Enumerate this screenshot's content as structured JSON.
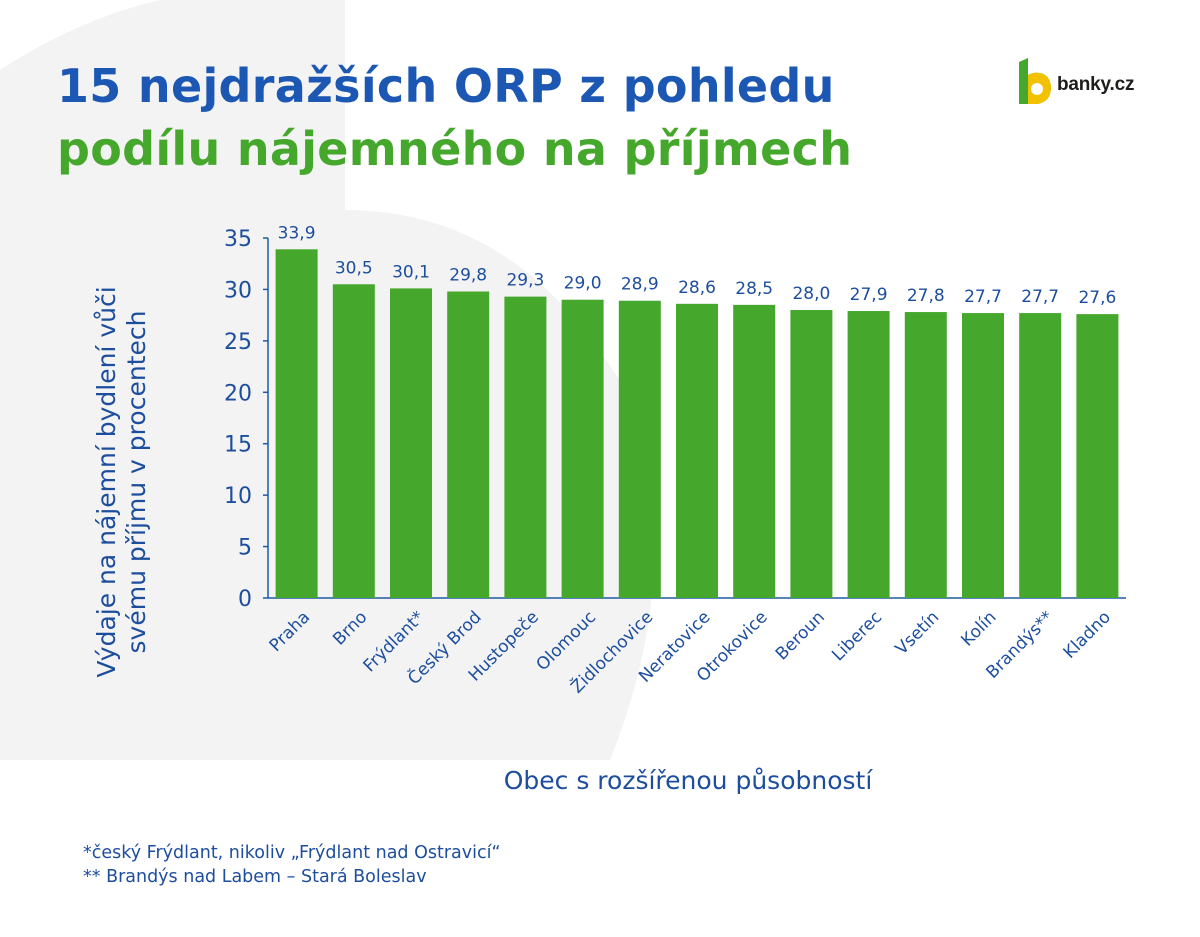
{
  "colors": {
    "title_blue": "#1b57b3",
    "title_green": "#45a72c",
    "bar_green": "#45a72c",
    "text_blue": "#1d4e9e",
    "background_shape": "#f3f3f3"
  },
  "header": {
    "title_line1": "15 nejdražších ORP z pohledu",
    "title_line2": "podílu nájemného na příjmech",
    "logo": {
      "icon": "banky-b-logo-icon",
      "text": "banky.cz"
    }
  },
  "chart_data": {
    "type": "bar",
    "ylabel": "Výdaje na nájemní bydlení vůči svému příjmu v procentech",
    "xlabel": "Obec s rozšířenou působností",
    "ylim": [
      0,
      35
    ],
    "yticks": [
      "0",
      "5",
      "10",
      "15",
      "20",
      "25",
      "30",
      "35"
    ],
    "grid": false,
    "categories": [
      "Praha",
      "Brno",
      "Frýdlant*",
      "Český Brod",
      "Hustopeče",
      "Olomouc",
      "Židlochovice",
      "Neratovice",
      "Otrokovice",
      "Beroun",
      "Liberec",
      "Vsetín",
      "Kolín",
      "Brandýs**",
      "Kladno"
    ],
    "values": [
      33.9,
      30.5,
      30.1,
      29.8,
      29.3,
      29.0,
      28.9,
      28.6,
      28.5,
      28.0,
      27.9,
      27.8,
      27.7,
      27.7,
      27.6
    ],
    "value_labels": [
      "33,9",
      "30,5",
      "30,1",
      "29,8",
      "29,3",
      "29,0",
      "28,9",
      "28,6",
      "28,5",
      "28,0",
      "27,9",
      "27,8",
      "27,7",
      "27,7",
      "27,6"
    ]
  },
  "footnotes": {
    "note1": "*český Frýdlant, nikoliv „Frýdlant nad Ostravicí“",
    "note2": "** Brandýs nad Labem – Stará Boleslav"
  }
}
